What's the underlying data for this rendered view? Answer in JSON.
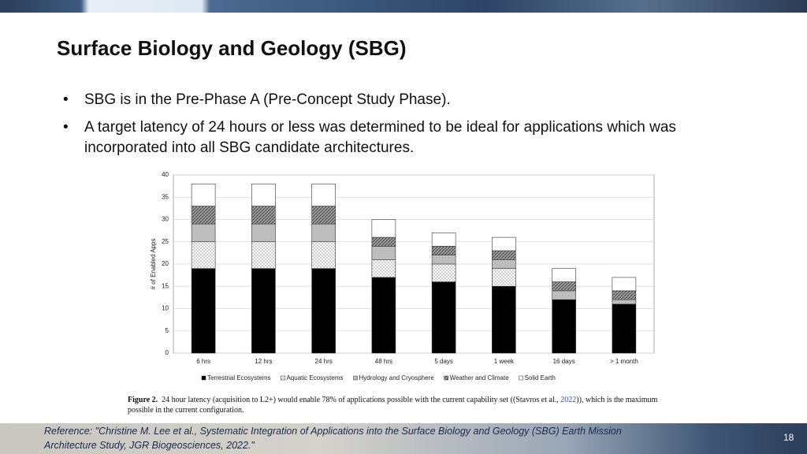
{
  "slide": {
    "title": "Surface Biology and Geology (SBG)",
    "bullets": [
      "SBG is in the Pre-Phase A (Pre-Concept Study Phase).",
      "A target latency of 24 hours or less was determined to be ideal for applications which was incorporated into all SBG candidate architectures."
    ],
    "reference": [
      "Reference: \"Christine M. Lee et al., Systematic Integration of Applications into the Surface Biology and Geology (SBG) Earth Mission",
      "Architecture Study, JGR Biogeosciences, 2022.\""
    ],
    "page_number": "18"
  },
  "chart_data": {
    "type": "stacked_bar",
    "y_label": "# of Enabled Apps",
    "categories": [
      "6 hrs",
      "12 hrs",
      "24 hrs",
      "48 hrs",
      "5 days",
      "1 week",
      "16 days",
      "> 1 month"
    ],
    "series": [
      {
        "name": "Terrestrial Ecosystems",
        "color": "#000000",
        "values": [
          19,
          19,
          19,
          17,
          16,
          15,
          12,
          11
        ]
      },
      {
        "name": "Aquatic Ecosystems",
        "color": "#ffffff",
        "values": [
          6,
          6,
          6,
          4,
          4,
          4,
          0,
          0
        ]
      },
      {
        "name": "Hydrology and Cryosphere",
        "color": "#bdbdbd",
        "values": [
          4,
          4,
          4,
          3,
          2,
          2,
          2,
          1
        ]
      },
      {
        "name": "Weather and Climate",
        "color": "#9e9e9e",
        "values": [
          4,
          4,
          4,
          2,
          2,
          2,
          2,
          2
        ]
      },
      {
        "name": "Solid Earth",
        "color": "#ffffff",
        "values": [
          5,
          5,
          5,
          4,
          3,
          3,
          3,
          3
        ]
      }
    ],
    "ylim": [
      0,
      40
    ],
    "yticks": [
      0,
      5,
      10,
      15,
      20,
      25,
      30,
      35,
      40
    ],
    "grid": true,
    "legend": "bottom"
  },
  "figure_caption": {
    "label": "Figure 2.",
    "text_before": "24 hour latency (acquisition to L2+) would enable 78% of applications possible with the current capability set ((Stavros et al., ",
    "link": "2022",
    "text_after": ")), which is the maximum",
    "line2": "possible in the current configuration."
  }
}
